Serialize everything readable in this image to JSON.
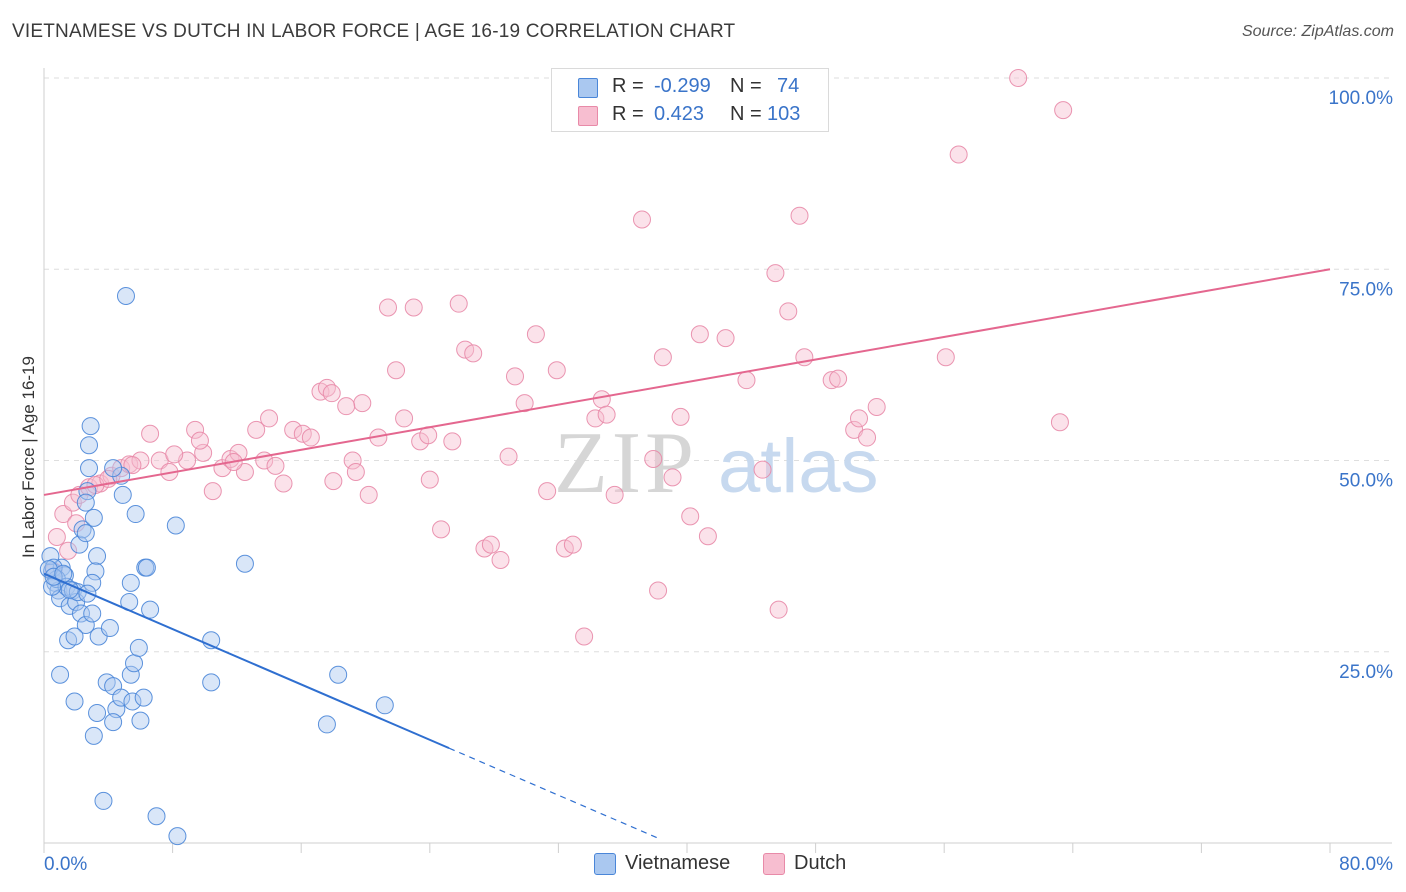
{
  "header": {
    "title": "VIETNAMESE VS DUTCH IN LABOR FORCE | AGE 16-19 CORRELATION CHART",
    "source": "Source: ZipAtlas.com"
  },
  "watermark": {
    "part1": "ZIP",
    "part2": "atlas"
  },
  "legend": {
    "r_label": "R =",
    "n_label": "N =",
    "rows": [
      {
        "r": "-0.299",
        "n": "74"
      },
      {
        "r": "0.423",
        "n": "103"
      }
    ]
  },
  "colors": {
    "vietnamese_fill": "#aac8f0",
    "vietnamese_stroke": "#4a86d8",
    "vietnamese_line": "#2f6fd0",
    "dutch_fill": "#f7bed0",
    "dutch_stroke": "#e88aa8",
    "dutch_line": "#e4678f",
    "axis_label": "#3a74c9"
  },
  "chart_data": {
    "type": "scatter",
    "title": "VIETNAMESE VS DUTCH IN LABOR FORCE | AGE 16-19 CORRELATION CHART",
    "xlabel": "",
    "ylabel": "In Labor Force | Age 16-19",
    "xlim": [
      0,
      80
    ],
    "ylim": [
      0,
      100
    ],
    "x_tick_labels": [
      "0.0%",
      "80.0%"
    ],
    "y_tick_labels": [
      "25.0%",
      "50.0%",
      "75.0%",
      "100.0%"
    ],
    "y_ticks": [
      25,
      50,
      75,
      100
    ],
    "grid": true,
    "series": [
      {
        "name": "Vietnamese",
        "r": -0.299,
        "n": 74,
        "trend": {
          "x0": 0,
          "y0": 35.2,
          "x1": 25.2,
          "y1": 12.4,
          "dash_to_x": 38.2
        },
        "points": [
          [
            0.5,
            35.5
          ],
          [
            0.7,
            34
          ],
          [
            0.9,
            33
          ],
          [
            1.1,
            36
          ],
          [
            1.3,
            35
          ],
          [
            0.4,
            37.5
          ],
          [
            0.6,
            36
          ],
          [
            0.8,
            34.5
          ],
          [
            1.0,
            32
          ],
          [
            1.4,
            33.5
          ],
          [
            1.6,
            31
          ],
          [
            1.8,
            33
          ],
          [
            2.0,
            31.5
          ],
          [
            0.3,
            35.8
          ],
          [
            0.5,
            33.5
          ],
          [
            0.6,
            34.8
          ],
          [
            2.3,
            30
          ],
          [
            2.6,
            28.5
          ],
          [
            3.0,
            30
          ],
          [
            3.4,
            27
          ],
          [
            1.5,
            26.5
          ],
          [
            1.9,
            27
          ],
          [
            2.2,
            39
          ],
          [
            2.4,
            41
          ],
          [
            2.6,
            40.5
          ],
          [
            3.3,
            37.5
          ],
          [
            3.2,
            35.5
          ],
          [
            3.0,
            34
          ],
          [
            1.0,
            22
          ],
          [
            1.9,
            18.5
          ],
          [
            3.3,
            17
          ],
          [
            3.9,
            21
          ],
          [
            4.3,
            20.5
          ],
          [
            4.5,
            17.5
          ],
          [
            4.8,
            19
          ],
          [
            4.3,
            15.8
          ],
          [
            3.1,
            14
          ],
          [
            5.4,
            22
          ],
          [
            5.6,
            23.5
          ],
          [
            5.5,
            18.5
          ],
          [
            6.0,
            16
          ],
          [
            6.2,
            19
          ],
          [
            5.9,
            25.5
          ],
          [
            6.3,
            36
          ],
          [
            6.4,
            36
          ],
          [
            6.6,
            30.5
          ],
          [
            5.3,
            31.5
          ],
          [
            5.4,
            34
          ],
          [
            4.9,
            45.5
          ],
          [
            5.7,
            43
          ],
          [
            4.8,
            48
          ],
          [
            4.3,
            49
          ],
          [
            2.7,
            46
          ],
          [
            2.6,
            44.5
          ],
          [
            3.1,
            42.5
          ],
          [
            2.8,
            49
          ],
          [
            2.8,
            52
          ],
          [
            2.9,
            54.5
          ],
          [
            5.1,
            71.5
          ],
          [
            8.2,
            41.5
          ],
          [
            10.4,
            26.5
          ],
          [
            10.4,
            21
          ],
          [
            12.5,
            36.5
          ],
          [
            18.3,
            22
          ],
          [
            17.6,
            15.5
          ],
          [
            21.2,
            18
          ],
          [
            3.7,
            5.5
          ],
          [
            7.0,
            3.5
          ],
          [
            8.3,
            0.9
          ],
          [
            2.1,
            32.8
          ],
          [
            1.2,
            35.2
          ],
          [
            1.6,
            33.1
          ],
          [
            2.7,
            32.6
          ],
          [
            4.1,
            28.1
          ]
        ]
      },
      {
        "name": "Dutch",
        "r": 0.423,
        "n": 103,
        "trend": {
          "x0": 0,
          "y0": 45.5,
          "x1": 80,
          "y1": 75
        },
        "points": [
          [
            0.8,
            40
          ],
          [
            1.2,
            43
          ],
          [
            1.8,
            44.5
          ],
          [
            2.2,
            45.5
          ],
          [
            2.8,
            46.5
          ],
          [
            3.5,
            47
          ],
          [
            4.2,
            48
          ],
          [
            4.8,
            49
          ],
          [
            5.3,
            49.5
          ],
          [
            6.0,
            50
          ],
          [
            6.6,
            53.5
          ],
          [
            7.2,
            50
          ],
          [
            7.8,
            48.5
          ],
          [
            8.9,
            50
          ],
          [
            9.4,
            54
          ],
          [
            9.9,
            51
          ],
          [
            10.5,
            46
          ],
          [
            11.1,
            49
          ],
          [
            11.6,
            50.2
          ],
          [
            12.1,
            51
          ],
          [
            12.5,
            48.5
          ],
          [
            13.2,
            54
          ],
          [
            13.7,
            50
          ],
          [
            14.0,
            55.5
          ],
          [
            14.4,
            49.3
          ],
          [
            14.9,
            47
          ],
          [
            15.5,
            54
          ],
          [
            16.1,
            53.5
          ],
          [
            16.6,
            53
          ],
          [
            17.2,
            59
          ],
          [
            17.6,
            59.5
          ],
          [
            18.0,
            47.3
          ],
          [
            19.2,
            50
          ],
          [
            19.4,
            48.5
          ],
          [
            19.8,
            57.5
          ],
          [
            20.2,
            45.5
          ],
          [
            20.8,
            53
          ],
          [
            21.4,
            70
          ],
          [
            21.9,
            61.8
          ],
          [
            22.4,
            55.5
          ],
          [
            23.0,
            70
          ],
          [
            23.4,
            52.5
          ],
          [
            24.0,
            47.5
          ],
          [
            24.7,
            41
          ],
          [
            25.4,
            52.5
          ],
          [
            25.8,
            70.5
          ],
          [
            26.2,
            64.5
          ],
          [
            26.7,
            64
          ],
          [
            27.4,
            38.5
          ],
          [
            27.8,
            39
          ],
          [
            28.4,
            37
          ],
          [
            28.9,
            50.5
          ],
          [
            29.3,
            61
          ],
          [
            29.9,
            57.5
          ],
          [
            30.6,
            66.5
          ],
          [
            31.3,
            46
          ],
          [
            31.9,
            61.8
          ],
          [
            32.4,
            38.5
          ],
          [
            32.9,
            39
          ],
          [
            33.6,
            27
          ],
          [
            34.3,
            55.5
          ],
          [
            34.7,
            58
          ],
          [
            35.0,
            56
          ],
          [
            35.5,
            45.5
          ],
          [
            37.2,
            81.5
          ],
          [
            37.9,
            50.2
          ],
          [
            38.2,
            33
          ],
          [
            38.5,
            63.5
          ],
          [
            39.1,
            47.8
          ],
          [
            39.6,
            55.7
          ],
          [
            40.2,
            42.7
          ],
          [
            40.8,
            66.5
          ],
          [
            41.3,
            40.1
          ],
          [
            42.4,
            66
          ],
          [
            43.7,
            60.5
          ],
          [
            44.7,
            48.8
          ],
          [
            45.5,
            74.5
          ],
          [
            47.0,
            82
          ],
          [
            45.7,
            30.5
          ],
          [
            46.3,
            69.5
          ],
          [
            47.3,
            63.5
          ],
          [
            49.0,
            60.5
          ],
          [
            49.4,
            60.7
          ],
          [
            50.4,
            54
          ],
          [
            50.7,
            55.5
          ],
          [
            51.2,
            53
          ],
          [
            51.8,
            57
          ],
          [
            56.1,
            63.5
          ],
          [
            56.9,
            90
          ],
          [
            60.6,
            100
          ],
          [
            63.4,
            95.8
          ],
          [
            63.2,
            55
          ],
          [
            23.9,
            53.3
          ],
          [
            17.9,
            58.8
          ],
          [
            18.8,
            57.1
          ],
          [
            11.8,
            49.8
          ],
          [
            8.1,
            50.8
          ],
          [
            5.5,
            49.4
          ],
          [
            3.2,
            46.8
          ],
          [
            1.5,
            38.2
          ],
          [
            0.6,
            35.5
          ],
          [
            2.0,
            41.8
          ],
          [
            4.0,
            47.6
          ],
          [
            9.7,
            52.6
          ]
        ]
      }
    ]
  }
}
